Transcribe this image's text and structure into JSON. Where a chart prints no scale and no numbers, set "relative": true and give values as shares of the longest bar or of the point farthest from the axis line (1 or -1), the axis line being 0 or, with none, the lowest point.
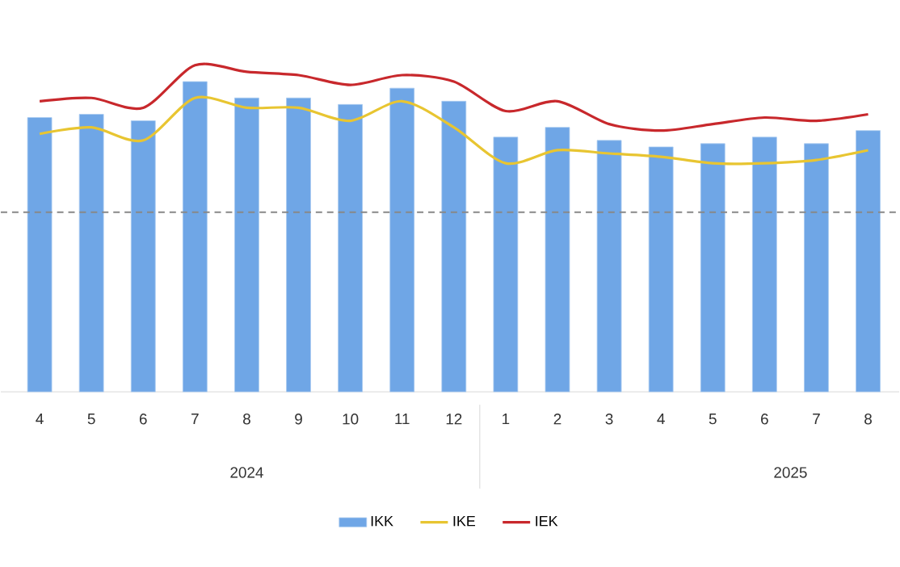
{
  "chart_data": {
    "type": "bar",
    "relative": true,
    "categories": [
      "4",
      "5",
      "6",
      "7",
      "8",
      "9",
      "10",
      "11",
      "12",
      "1",
      "2",
      "3",
      "4",
      "5",
      "6",
      "7",
      "8"
    ],
    "series": [
      {
        "name": "IKK",
        "color": "#6fa6e6",
        "values": [
          0.84,
          0.85,
          0.83,
          0.95,
          0.9,
          0.9,
          0.88,
          0.93,
          0.89,
          0.78,
          0.81,
          0.77,
          0.75,
          0.76,
          0.78,
          0.76,
          0.8
        ]
      },
      {
        "name": "IKE",
        "type": "line",
        "color": "#e8c531",
        "values": [
          0.79,
          0.81,
          0.77,
          0.9,
          0.87,
          0.87,
          0.83,
          0.89,
          0.81,
          0.7,
          0.74,
          0.73,
          0.72,
          0.7,
          0.7,
          0.71,
          0.74
        ]
      },
      {
        "name": "IEK",
        "type": "line",
        "color": "#c8282c",
        "values": [
          0.89,
          0.9,
          0.87,
          1,
          0.98,
          0.97,
          0.94,
          0.97,
          0.95,
          0.86,
          0.89,
          0.82,
          0.8,
          0.82,
          0.84,
          0.83,
          0.85
        ]
      }
    ],
    "ref_lines": [
      {
        "axis": "y",
        "value": 0.55,
        "color": "#888888",
        "line_style": "dashed"
      }
    ],
    "annotations": [
      "2024",
      "2025"
    ],
    "legend": "bottom",
    "grid": false,
    "marker": "none"
  }
}
